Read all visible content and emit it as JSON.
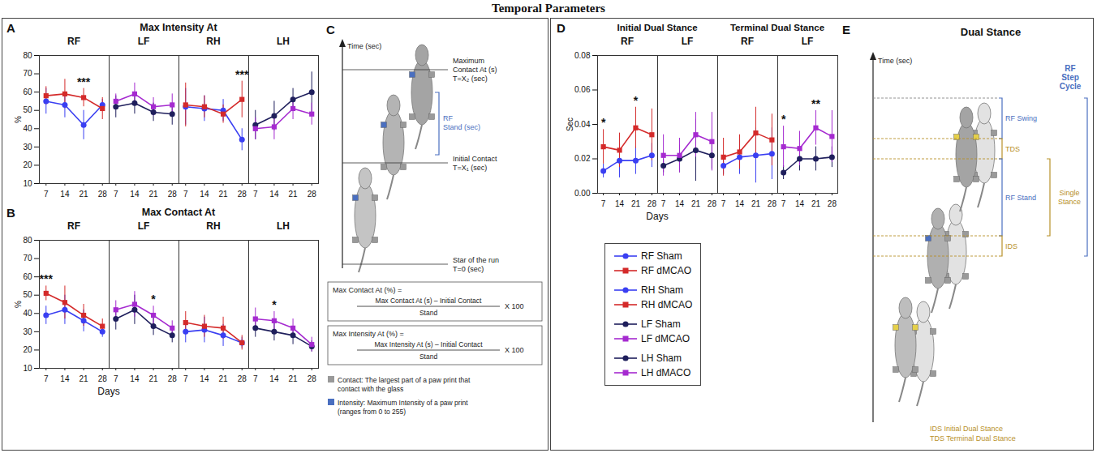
{
  "title": "Temporal Parameters",
  "chart_data": [
    {
      "panel": "A",
      "type": "line",
      "title": "Max Intensity At",
      "y_label": "%",
      "x": [
        7,
        14,
        21,
        28
      ],
      "xlim": [
        4.5,
        30.5
      ],
      "xticks": [
        7,
        14,
        21,
        28
      ],
      "ylim": [
        10,
        80
      ],
      "yticks": [
        10,
        20,
        30,
        40,
        50,
        60,
        70,
        80
      ],
      "facets": [
        {
          "name": "RF",
          "series": [
            {
              "name": "RF Sham",
              "color": "#3a3ff2",
              "marker": "circle",
              "values": [
                55,
                53,
                42,
                53
              ],
              "errors": [
                7,
                7,
                8,
                3
              ]
            },
            {
              "name": "RF dMCAO",
              "color": "#d42a2a",
              "marker": "square",
              "values": [
                58,
                59,
                57,
                51
              ],
              "errors": [
                5,
                8,
                5,
                6
              ]
            }
          ],
          "annotations": [
            {
              "x": 21,
              "text": "***"
            }
          ]
        },
        {
          "name": "LF",
          "series": [
            {
              "name": "LF Sham",
              "color": "#1f1f5c",
              "marker": "circle",
              "values": [
                52,
                54,
                49,
                48
              ],
              "errors": [
                6,
                6,
                5,
                6
              ]
            },
            {
              "name": "LF dMCAO",
              "color": "#a52ad0",
              "marker": "square",
              "values": [
                55,
                59,
                52,
                53
              ],
              "errors": [
                4,
                6,
                5,
                6
              ]
            }
          ],
          "annotations": []
        },
        {
          "name": "RH",
          "series": [
            {
              "name": "RH Sham",
              "color": "#3a3ff2",
              "marker": "circle",
              "values": [
                52,
                51,
                50,
                34
              ],
              "errors": [
                10,
                7,
                6,
                6
              ]
            },
            {
              "name": "RH dMCAO",
              "color": "#d42a2a",
              "marker": "square",
              "values": [
                53,
                52,
                48,
                56
              ],
              "errors": [
                12,
                6,
                5,
                10
              ]
            }
          ],
          "annotations": [
            {
              "x": 28,
              "text": "***"
            }
          ]
        },
        {
          "name": "LH",
          "series": [
            {
              "name": "LH Sham",
              "color": "#1f1f5c",
              "marker": "circle",
              "values": [
                42,
                47,
                56,
                60
              ],
              "errors": [
                8,
                8,
                6,
                11
              ]
            },
            {
              "name": "LH dMACO",
              "color": "#a52ad0",
              "marker": "square",
              "values": [
                40,
                41,
                51,
                48
              ],
              "errors": [
                6,
                7,
                6,
                6
              ]
            }
          ],
          "annotations": []
        }
      ]
    },
    {
      "panel": "B",
      "type": "line",
      "title": "Max Contact At",
      "y_label": "%",
      "x_label": "Days",
      "x": [
        7,
        14,
        21,
        28
      ],
      "xlim": [
        4.5,
        30.5
      ],
      "xticks": [
        7,
        14,
        21,
        28
      ],
      "ylim": [
        10,
        80
      ],
      "yticks": [
        10,
        20,
        30,
        40,
        50,
        60,
        70,
        80
      ],
      "facets": [
        {
          "name": "RF",
          "series": [
            {
              "name": "RF Sham",
              "color": "#3a3ff2",
              "marker": "circle",
              "values": [
                39,
                42,
                36,
                30
              ],
              "errors": [
                5,
                8,
                6,
                3
              ]
            },
            {
              "name": "RF dMCAO",
              "color": "#d42a2a",
              "marker": "square",
              "values": [
                51,
                46,
                39,
                33
              ],
              "errors": [
                4,
                9,
                6,
                4
              ]
            }
          ],
          "annotations": [
            {
              "x": 7,
              "text": "***"
            }
          ]
        },
        {
          "name": "LF",
          "series": [
            {
              "name": "LF Sham",
              "color": "#1f1f5c",
              "marker": "circle",
              "values": [
                37,
                42,
                33,
                28
              ],
              "errors": [
                6,
                8,
                5,
                4
              ]
            },
            {
              "name": "LF dMCAO",
              "color": "#a52ad0",
              "marker": "square",
              "values": [
                42,
                45,
                39,
                32
              ],
              "errors": [
                5,
                7,
                5,
                4
              ]
            }
          ],
          "annotations": [
            {
              "x": 21,
              "text": "*"
            }
          ]
        },
        {
          "name": "RH",
          "series": [
            {
              "name": "RH Sham",
              "color": "#3a3ff2",
              "marker": "circle",
              "values": [
                30,
                31,
                28,
                24
              ],
              "errors": [
                6,
                7,
                6,
                3
              ]
            },
            {
              "name": "RH dMCAO",
              "color": "#d42a2a",
              "marker": "square",
              "values": [
                35,
                33,
                32,
                24
              ],
              "errors": [
                6,
                6,
                6,
                4
              ]
            }
          ],
          "annotations": []
        },
        {
          "name": "LH",
          "series": [
            {
              "name": "LH Sham",
              "color": "#1f1f5c",
              "marker": "circle",
              "values": [
                32,
                30,
                28,
                22
              ],
              "errors": [
                5,
                5,
                5,
                3
              ]
            },
            {
              "name": "LH dMACO",
              "color": "#a52ad0",
              "marker": "square",
              "values": [
                37,
                36,
                32,
                23
              ],
              "errors": [
                6,
                5,
                5,
                4
              ]
            }
          ],
          "annotations": [
            {
              "x": 14,
              "text": "*"
            }
          ]
        }
      ]
    },
    {
      "panel": "D",
      "type": "line",
      "y_label": "Sec",
      "x_label": "Days",
      "x": [
        7,
        14,
        21,
        28
      ],
      "xlim": [
        4.5,
        30.5
      ],
      "xticks": [
        7,
        14,
        21,
        28
      ],
      "ylim": [
        0,
        0.08
      ],
      "yticks": [
        {
          "value": 0,
          "label": "0.00"
        },
        {
          "value": 0.02,
          "label": "0.02"
        },
        {
          "value": 0.04,
          "label": "0.04"
        },
        {
          "value": 0.06,
          "label": "0.06"
        },
        {
          "value": 0.08,
          "label": "0.08"
        }
      ],
      "facets": [
        {
          "group": "Initial Dual Stance",
          "name": "RF",
          "series": [
            {
              "name": "RF Sham",
              "color": "#3a3ff2",
              "marker": "circle",
              "values": [
                0.013,
                0.019,
                0.019,
                0.022
              ],
              "errors": [
                0.004,
                0.01,
                0.008,
                0.007
              ]
            },
            {
              "name": "RF dMCAO",
              "color": "#d42a2a",
              "marker": "square",
              "values": [
                0.027,
                0.025,
                0.038,
                0.034
              ],
              "errors": [
                0.01,
                0.01,
                0.012,
                0.015
              ]
            }
          ],
          "annotations": [
            {
              "x": 7,
              "text": "*"
            },
            {
              "x": 21,
              "text": "*"
            }
          ]
        },
        {
          "group": "Initial Dual Stance",
          "name": "LF",
          "series": [
            {
              "name": "LF Sham",
              "color": "#1f1f5c",
              "marker": "circle",
              "values": [
                0.016,
                0.02,
                0.025,
                0.022
              ],
              "errors": [
                0.004,
                0.008,
                0.018,
                0.008
              ]
            },
            {
              "name": "LF dMCAO",
              "color": "#a52ad0",
              "marker": "square",
              "values": [
                0.022,
                0.022,
                0.034,
                0.03
              ],
              "errors": [
                0.012,
                0.01,
                0.013,
                0.017
              ]
            }
          ],
          "annotations": []
        },
        {
          "group": "Terminal Dual Stance",
          "name": "RF",
          "series": [
            {
              "name": "RF Sham",
              "color": "#3a3ff2",
              "marker": "circle",
              "values": [
                0.016,
                0.021,
                0.022,
                0.023
              ],
              "errors": [
                0.005,
                0.01,
                0.016,
                0.015
              ]
            },
            {
              "name": "RF dMCAO",
              "color": "#d42a2a",
              "marker": "square",
              "values": [
                0.021,
                0.024,
                0.035,
                0.031
              ],
              "errors": [
                0.011,
                0.01,
                0.015,
                0.015
              ]
            }
          ],
          "annotations": []
        },
        {
          "group": "Terminal Dual Stance",
          "name": "LF",
          "series": [
            {
              "name": "LF Sham",
              "color": "#1f1f5c",
              "marker": "circle",
              "values": [
                0.012,
                0.02,
                0.02,
                0.021
              ],
              "errors": [
                0.004,
                0.007,
                0.007,
                0.006
              ]
            },
            {
              "name": "LF dMCAO",
              "color": "#a52ad0",
              "marker": "square",
              "values": [
                0.027,
                0.026,
                0.038,
                0.033
              ],
              "errors": [
                0.012,
                0.01,
                0.01,
                0.015
              ]
            }
          ],
          "annotations": [
            {
              "x": 7,
              "text": "*"
            },
            {
              "x": 21,
              "text": "**"
            }
          ]
        }
      ]
    }
  ],
  "legend_entries": [
    "RF Sham",
    "RF dMCAO",
    "RH Sham",
    "RH dMCAO",
    "LF Sham",
    "LF dMCAO",
    "LH Sham",
    "LH dMACO"
  ],
  "diagram_C": {
    "panel": "C",
    "axis_label": "Time (sec)",
    "events": [
      {
        "lines": [
          "Maximum",
          "Contact At (s)",
          "T=X₂ (sec)"
        ]
      },
      {
        "lines": [
          "Initial Contact",
          "T=X₁ (sec)"
        ]
      },
      {
        "lines": [
          "Star of the run",
          "T=0 (sec)"
        ]
      }
    ],
    "stand_label": [
      "RF",
      "Stand (sec)"
    ],
    "formulas": [
      {
        "lhs": "Max Contact At (%) =",
        "numerator": "Max Contact At (s) – Initial Contact",
        "denominator": "Stand",
        "factor": "X 100"
      },
      {
        "lhs": "Max Intensity At (%) =",
        "numerator": "Max Intensity At (s) – Initial Contact",
        "denominator": "Stand",
        "factor": "X 100"
      }
    ],
    "notes": [
      "Contact: The largest part of a paw print that contact with the glass",
      "Intensity: Maximum Intensity of a paw print (ranges from 0 to 255)"
    ]
  },
  "diagram_E": {
    "panel": "E",
    "title": "Dual Stance",
    "axis_label": "Time (sec)",
    "phases": [
      "RF Swing",
      "TDS",
      "RF Stand",
      "IDS"
    ],
    "step_cycle": "RF Step Cycle",
    "single_stance": "Single Stance",
    "notes": [
      "IDS Initial Dual Stance",
      "TDS Terminal Dual Stance"
    ]
  }
}
